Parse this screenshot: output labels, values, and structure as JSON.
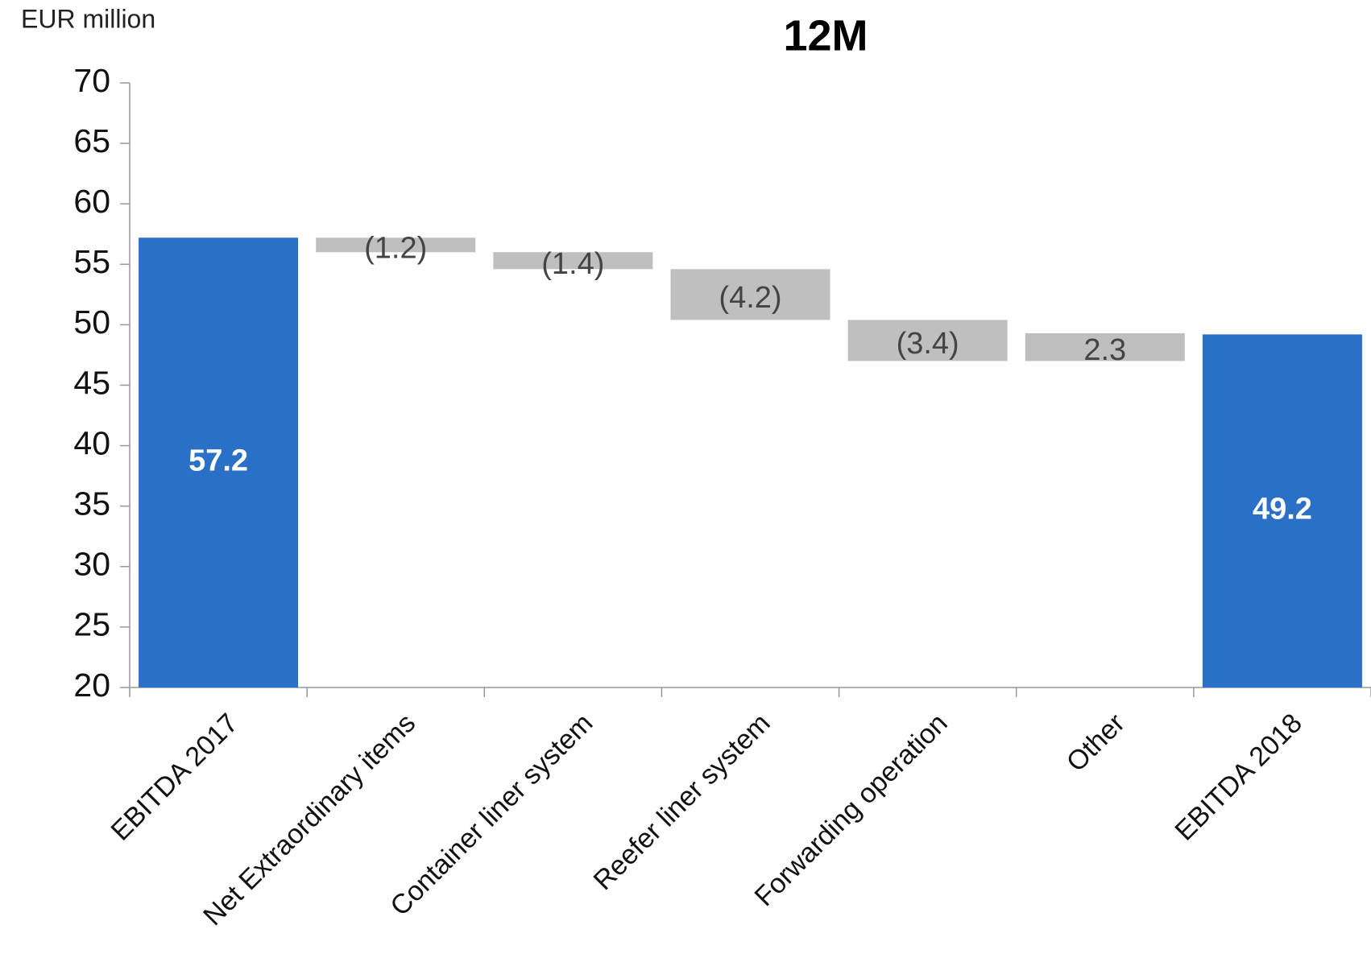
{
  "chart_data": {
    "type": "waterfall",
    "title": "12M",
    "y_label": "EUR million",
    "categories": [
      "EBITDA 2017",
      "Net Extraordinary items",
      "Container liner system",
      "Reefer liner system",
      "Forwarding operation",
      "Other",
      "EBITDA 2018"
    ],
    "values": [
      57.2,
      -1.2,
      -1.4,
      -4.2,
      -3.4,
      2.3,
      49.2
    ],
    "value_labels": [
      "57.2",
      "(1.2)",
      "(1.4)",
      "(4.2)",
      "(3.4)",
      "2.3",
      "49.2"
    ],
    "totals": [
      true,
      false,
      false,
      false,
      false,
      false,
      true
    ],
    "total_color": "#2970c6",
    "change_color": "#bfbfbf",
    "ylim": [
      20,
      70
    ],
    "yticks": [
      20,
      25,
      30,
      35,
      40,
      45,
      50,
      55,
      60,
      65,
      70
    ],
    "grid": false
  }
}
